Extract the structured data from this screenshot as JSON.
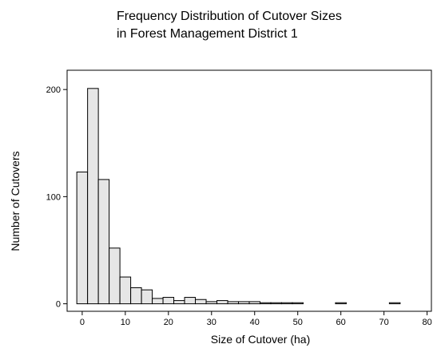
{
  "chart_data": {
    "type": "bar",
    "title": "Frequency Distribution of Cutover Sizes",
    "subtitle": "in Forest Management District 1",
    "xlabel": "Size of Cutover (ha)",
    "ylabel": "Number of Cutovers",
    "xlim": [
      -3.5,
      81
    ],
    "ylim": [
      -7,
      218
    ],
    "x_ticks": [
      0,
      10,
      20,
      30,
      40,
      50,
      60,
      70,
      80
    ],
    "y_ticks": [
      0,
      100,
      200
    ],
    "bin_width": 2.5,
    "bin_start": -1.25,
    "values": [
      123,
      201,
      116,
      52,
      25,
      15,
      13,
      5,
      6,
      3,
      6,
      4,
      2,
      3,
      2,
      2,
      2,
      1,
      1,
      1,
      1,
      0,
      0,
      0,
      1,
      0,
      0,
      0,
      0,
      1
    ],
    "bar_color": "#e6e6e6",
    "grid": false,
    "legend": "none"
  }
}
